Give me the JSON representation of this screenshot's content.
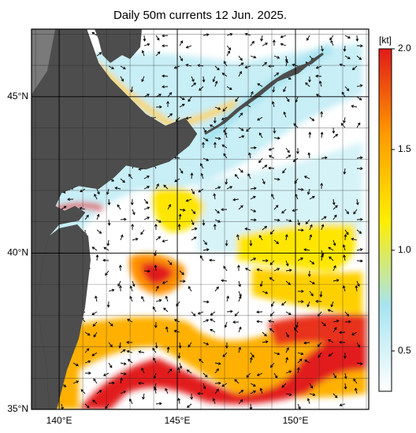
{
  "chart_data": {
    "type": "map",
    "title": "Daily 50m currents 12 Jun. 2025.",
    "xlim": [
      138.83,
      153.1
    ],
    "ylim": [
      35,
      47.16
    ],
    "xticks": [
      {
        "value": 140,
        "label": "140°E"
      },
      {
        "value": 145,
        "label": "145°E"
      },
      {
        "value": 150,
        "label": "150°E"
      }
    ],
    "yticks": [
      {
        "value": 35,
        "label": "35°N"
      },
      {
        "value": 40,
        "label": "40°N"
      },
      {
        "value": 45,
        "label": "45°N"
      }
    ],
    "grid": true,
    "colorbar": {
      "label": "[kt]",
      "lim": [
        0.3,
        2.0
      ],
      "ticks": [
        0.5,
        {
          "value": 1,
          "label": "1.0"
        },
        1.5,
        {
          "value": 2,
          "label": "2.0"
        }
      ],
      "colors": [
        "#ffffff",
        "#a8e4f0",
        "#ffee00",
        "#ff9a00",
        "#e21a1a"
      ]
    }
  }
}
